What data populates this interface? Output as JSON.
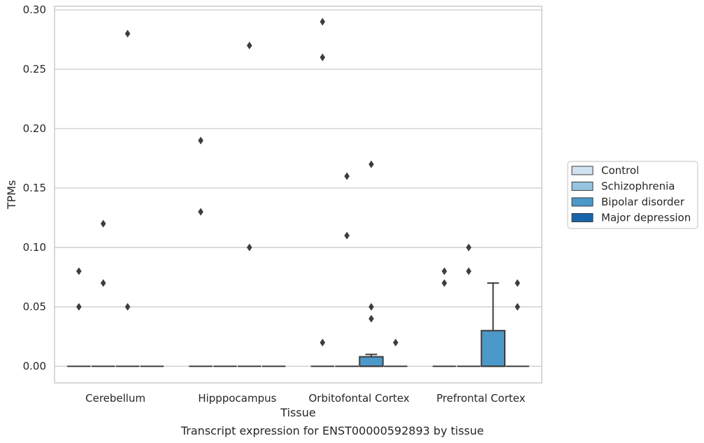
{
  "chart_data": {
    "type": "box",
    "title": "",
    "caption": "Transcript expression for ENST00000592893 by tissue",
    "xlabel": "Tissue",
    "ylabel": "TPMs",
    "ylim": [
      -0.014,
      0.303
    ],
    "yticks": [
      "0.00",
      "0.05",
      "0.10",
      "0.15",
      "0.20",
      "0.25",
      "0.30"
    ],
    "grid": true,
    "legend_position": "right",
    "categories": [
      "Cerebellum",
      "Hipppocampus",
      "Orbitofontal Cortex",
      "Prefrontal Cortex"
    ],
    "series": [
      {
        "name": "Control",
        "color": "#d0e1f2",
        "boxes": [
          {
            "q1": 0,
            "median": 0,
            "q3": 0,
            "whisker_low": 0,
            "whisker_high": 0,
            "outliers": [
              0.05,
              0.08
            ]
          },
          {
            "q1": 0,
            "median": 0,
            "q3": 0,
            "whisker_low": 0,
            "whisker_high": 0,
            "outliers": [
              0.13,
              0.19
            ]
          },
          {
            "q1": 0,
            "median": 0,
            "q3": 0,
            "whisker_low": 0,
            "whisker_high": 0,
            "outliers": [
              0.02,
              0.26,
              0.29
            ]
          },
          {
            "q1": 0,
            "median": 0,
            "q3": 0,
            "whisker_low": 0,
            "whisker_high": 0,
            "outliers": [
              0.07,
              0.08
            ]
          }
        ]
      },
      {
        "name": "Schizophrenia",
        "color": "#94c4df",
        "boxes": [
          {
            "q1": 0,
            "median": 0,
            "q3": 0,
            "whisker_low": 0,
            "whisker_high": 0,
            "outliers": [
              0.07,
              0.12
            ]
          },
          {
            "q1": 0,
            "median": 0,
            "q3": 0,
            "whisker_low": 0,
            "whisker_high": 0,
            "outliers": []
          },
          {
            "q1": 0,
            "median": 0,
            "q3": 0,
            "whisker_low": 0,
            "whisker_high": 0,
            "outliers": [
              0.11,
              0.16
            ]
          },
          {
            "q1": 0,
            "median": 0,
            "q3": 0,
            "whisker_low": 0,
            "whisker_high": 0,
            "outliers": [
              0.08,
              0.1
            ]
          }
        ]
      },
      {
        "name": "Bipolar disorder",
        "color": "#4b98c9",
        "boxes": [
          {
            "q1": 0,
            "median": 0,
            "q3": 0,
            "whisker_low": 0,
            "whisker_high": 0,
            "outliers": [
              0.05,
              0.28
            ]
          },
          {
            "q1": 0,
            "median": 0,
            "q3": 0,
            "whisker_low": 0,
            "whisker_high": 0,
            "outliers": [
              0.1,
              0.27
            ]
          },
          {
            "q1": 0,
            "median": 0,
            "q3": 0.008,
            "whisker_low": 0,
            "whisker_high": 0.01,
            "outliers": [
              0.04,
              0.05,
              0.17
            ]
          },
          {
            "q1": 0,
            "median": 0,
            "q3": 0.03,
            "whisker_low": 0,
            "whisker_high": 0.07,
            "outliers": []
          }
        ]
      },
      {
        "name": "Major depression",
        "color": "#1764ab",
        "boxes": [
          {
            "q1": 0,
            "median": 0,
            "q3": 0,
            "whisker_low": 0,
            "whisker_high": 0,
            "outliers": []
          },
          {
            "q1": 0,
            "median": 0,
            "q3": 0,
            "whisker_low": 0,
            "whisker_high": 0,
            "outliers": []
          },
          {
            "q1": 0,
            "median": 0,
            "q3": 0,
            "whisker_low": 0,
            "whisker_high": 0,
            "outliers": [
              0.02
            ]
          },
          {
            "q1": 0,
            "median": 0,
            "q3": 0,
            "whisker_low": 0,
            "whisker_high": 0,
            "outliers": [
              0.05,
              0.07
            ]
          }
        ]
      }
    ]
  }
}
